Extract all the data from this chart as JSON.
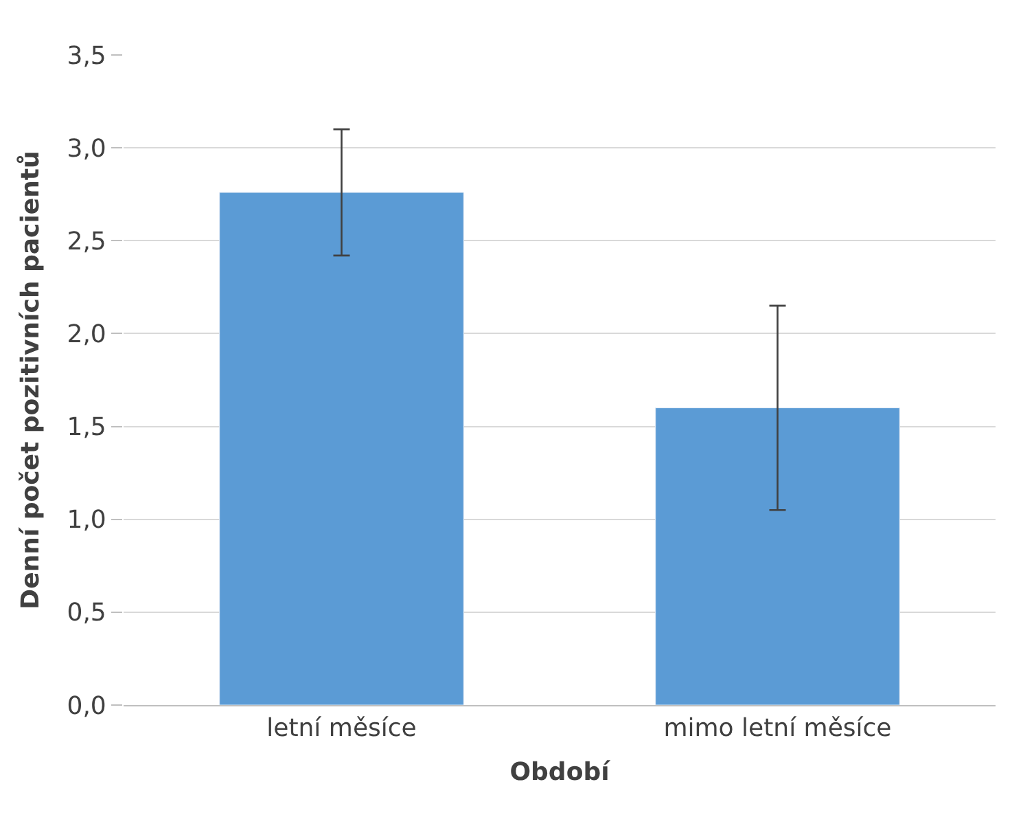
{
  "chart_data": {
    "type": "bar",
    "xlabel": "Období",
    "ylabel": "Denní počet pozitivních pacientů",
    "categories": [
      "letní měsíce",
      "mimo letní měsíce"
    ],
    "values": [
      2.76,
      1.6
    ],
    "errors": [
      0.34,
      0.55
    ],
    "color": "#5b9bd5",
    "ylim": [
      0,
      3.5
    ],
    "yticks": [
      {
        "value": 0,
        "label": "0,0"
      },
      {
        "value": 0.5,
        "label": "0,5"
      },
      {
        "value": 1,
        "label": "1,0"
      },
      {
        "value": 1.5,
        "label": "1,5"
      },
      {
        "value": 2,
        "label": "2,0"
      },
      {
        "value": 2.5,
        "label": "2,5"
      },
      {
        "value": 3,
        "label": "3,0"
      },
      {
        "value": 3.5,
        "label": "3,5"
      }
    ],
    "grid": "y"
  }
}
